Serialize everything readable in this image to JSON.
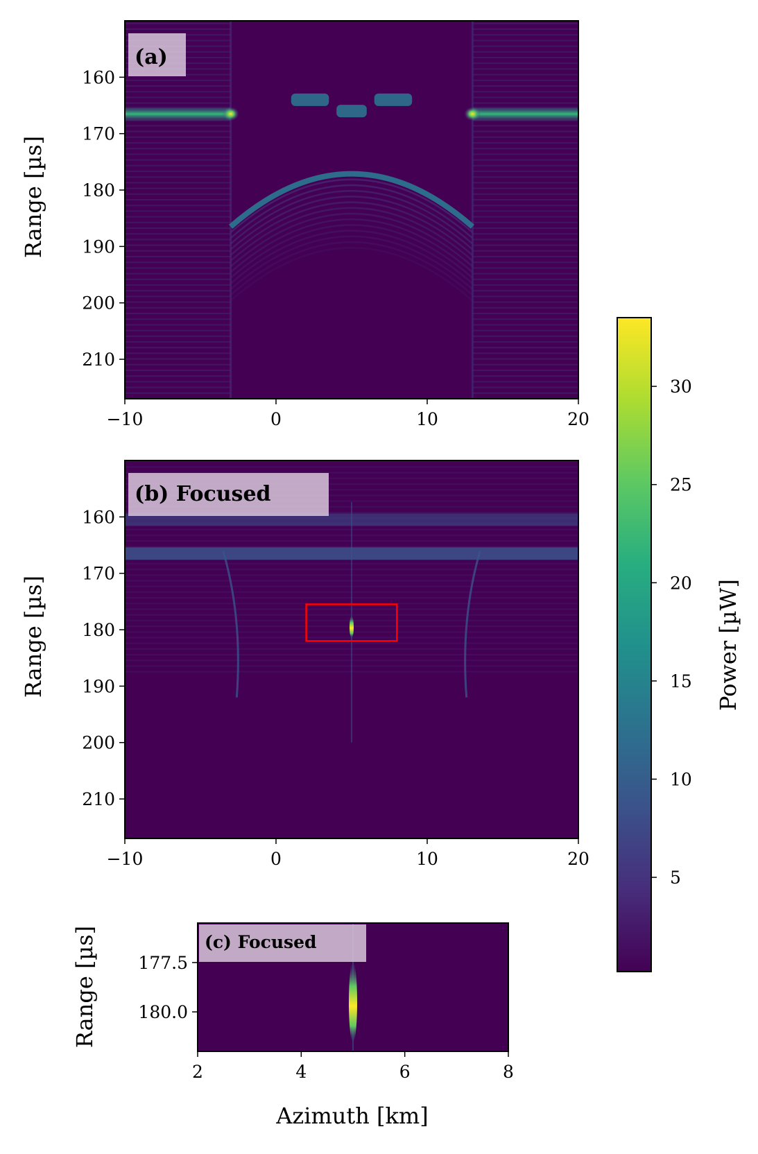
{
  "chart_data": [
    {
      "type": "heatmap",
      "title": "(a)",
      "xlabel": "",
      "ylabel": "Range [µs]",
      "xlim": [
        -10,
        20
      ],
      "ylim": [
        150,
        217
      ],
      "y_inverted": true,
      "xticks": [
        "−10",
        "0",
        "10",
        "20"
      ],
      "yticks": [
        "160",
        "170",
        "180",
        "190",
        "200",
        "210"
      ],
      "features": [
        {
          "kind": "horizontal-band",
          "range_us": 166.5,
          "x_from": -10,
          "x_to": -3,
          "peak_uW": 33
        },
        {
          "kind": "horizontal-band",
          "range_us": 166.5,
          "x_from": 13,
          "x_to": 20,
          "peak_uW": 33
        },
        {
          "kind": "segment",
          "range_us": 164,
          "x_from": 1,
          "x_to": 3.5,
          "peak_uW": 9
        },
        {
          "kind": "segment",
          "range_us": 166,
          "x_from": 4,
          "x_to": 6,
          "peak_uW": 10
        },
        {
          "kind": "segment",
          "range_us": 164,
          "x_from": 6.5,
          "x_to": 9,
          "peak_uW": 9
        },
        {
          "kind": "hyperbola",
          "apex_x": 5,
          "apex_range_us": 179,
          "edge_x": [
            -3,
            13
          ],
          "edge_range_us": 186.5,
          "peak_uW": 9
        }
      ]
    },
    {
      "type": "heatmap",
      "title": "(b) Focused",
      "xlabel": "",
      "ylabel": "Range [µs]",
      "xlim": [
        -10,
        20
      ],
      "ylim": [
        150,
        217
      ],
      "y_inverted": true,
      "xticks": [
        "−10",
        "0",
        "10",
        "20"
      ],
      "yticks": [
        "160",
        "170",
        "180",
        "190",
        "200",
        "210"
      ],
      "highlight_box": {
        "x": [
          2,
          8
        ],
        "range_us": [
          175.5,
          182
        ],
        "color": "#ff0000"
      },
      "features": [
        {
          "kind": "point",
          "x": 5,
          "range_us": 179.5,
          "peak_uW": 33
        },
        {
          "kind": "horizontal-band",
          "range_us": 166.5,
          "x_from": -10,
          "x_to": 20,
          "peak_uW": 6
        },
        {
          "kind": "horizontal-band",
          "range_us": 160.5,
          "x_from": -10,
          "x_to": 20,
          "peak_uW": 5
        }
      ]
    },
    {
      "type": "heatmap",
      "title": "(c) Focused",
      "xlabel": "Azimuth [km]",
      "ylabel": "Range [µs]",
      "xlim": [
        2,
        8
      ],
      "ylim": [
        175.5,
        182
      ],
      "y_inverted": true,
      "xticks": [
        "2",
        "4",
        "6",
        "8"
      ],
      "yticks": [
        "177.5",
        "180.0"
      ],
      "features": [
        {
          "kind": "point",
          "x": 5,
          "range_us": 179.5,
          "peak_uW": 33
        }
      ]
    }
  ],
  "colorbar": {
    "label": "Power [µW]",
    "colormap": "viridis",
    "range": [
      0.2,
      33.5
    ],
    "ticks": [
      "5",
      "10",
      "15",
      "20",
      "25",
      "30"
    ],
    "tick_values": [
      5,
      10,
      15,
      20,
      25,
      30
    ]
  },
  "colors": {
    "background": "#440154",
    "box": "#ff0000",
    "label_box": "#d8c8dc"
  }
}
